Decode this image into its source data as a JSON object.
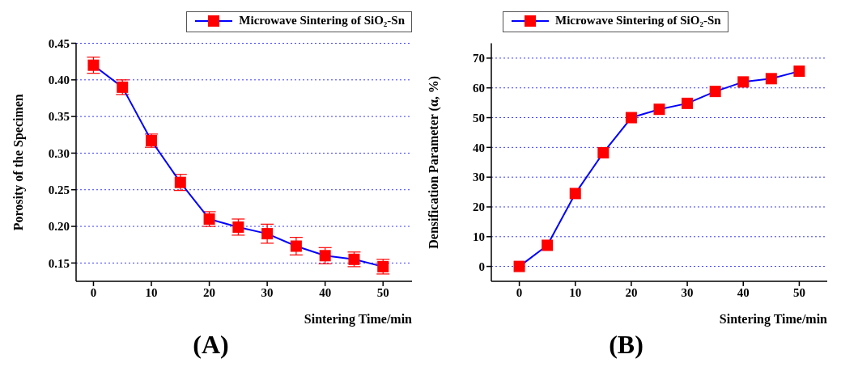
{
  "chart_data": [
    {
      "type": "line",
      "title": "(A)",
      "xlabel": "Sintering Time/min",
      "ylabel": "Porosity of the Specimen",
      "x": [
        0,
        5,
        10,
        15,
        20,
        25,
        30,
        35,
        40,
        45,
        50
      ],
      "series": [
        {
          "name": "Microwave Sintering of SiO₂-Sn",
          "color": "#0000ff",
          "colors": [
            "#ff0000",
            "#ff0000",
            "#ff0000",
            "#ff0000",
            "#ff0000",
            "#ff0000",
            "#ff0000",
            "#ff0000",
            "#ff0000",
            "#ff0000",
            "#ff0000"
          ],
          "values": [
            0.42,
            0.39,
            0.317,
            0.26,
            0.21,
            0.199,
            0.19,
            0.173,
            0.16,
            0.155,
            0.145
          ],
          "errors": [
            0.011,
            0.01,
            0.009,
            0.011,
            0.01,
            0.011,
            0.013,
            0.012,
            0.011,
            0.01,
            0.01
          ]
        }
      ],
      "xlim": [
        -3,
        55
      ],
      "xticks": [
        0,
        10,
        20,
        30,
        40,
        50
      ],
      "ylim": [
        0.125,
        0.45
      ],
      "yticks": [
        0.15,
        {
          "value": 0.2,
          "label": "0.20"
        },
        0.25,
        {
          "value": 0.3,
          "label": "0.30"
        },
        0.35,
        {
          "value": 0.4,
          "label": "0.40"
        },
        0.45
      ],
      "grid": "y",
      "legend": "top right",
      "marker": "square",
      "line_style": "solid"
    },
    {
      "type": "line",
      "title": "(B)",
      "xlabel": "Sintering Time/min",
      "ylabel": "Densification Parameter (α, %)",
      "x": [
        0,
        5,
        10,
        15,
        20,
        25,
        30,
        35,
        40,
        45,
        50
      ],
      "series": [
        {
          "name": "Microwave Sintering of SiO₂-Sn",
          "color": "#0000ff",
          "colors": [
            "#ff0000",
            "#ff0000",
            "#ff0000",
            "#ff0000",
            "#ff0000",
            "#ff0000",
            "#ff0000",
            "#ff0000",
            "#ff0000",
            "#ff0000",
            "#ff0000"
          ],
          "values": [
            0,
            7.1,
            24.5,
            38.2,
            50,
            52.8,
            54.8,
            58.8,
            62,
            63.1,
            65.6
          ]
        }
      ],
      "xlim": [
        -5,
        55
      ],
      "xticks": [
        0,
        10,
        20,
        30,
        40,
        50
      ],
      "ylim": [
        -5,
        75
      ],
      "yticks": [
        0,
        10,
        20,
        30,
        40,
        50,
        60,
        70
      ],
      "grid": "y",
      "legend": "top left",
      "marker": "square",
      "line_style": "solid"
    }
  ]
}
